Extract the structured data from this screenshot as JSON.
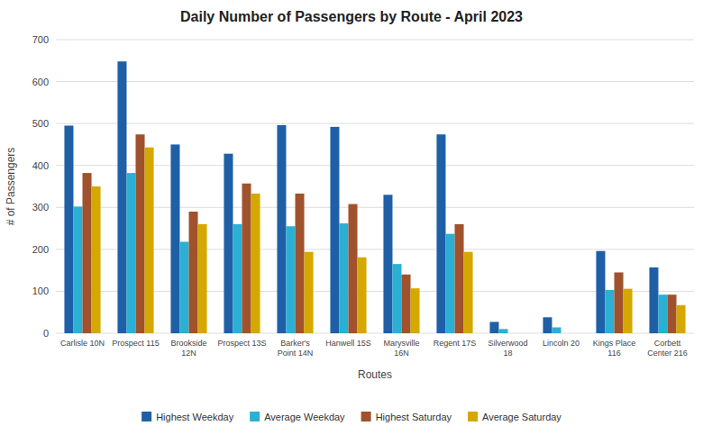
{
  "chart_data": {
    "type": "bar",
    "title": "Daily Number of Passengers by Route - April 2023",
    "xlabel": "Routes",
    "ylabel": "# of Passengers",
    "categories": [
      "Carlisle 10N",
      "Prospect 115",
      "Brookside\n12N",
      "Prospect 13S",
      "Barker's\nPoint 14N",
      "Hanwell 15S",
      "Marysville\n16N",
      "Regent 17S",
      "Silverwood\n18",
      "Lincoln 20",
      "Kings Place\n116",
      "Corbett\nCenter 216"
    ],
    "series": [
      {
        "name": "Highest Weekday",
        "color": "#1f5fa6",
        "values": [
          495,
          648,
          450,
          428,
          496,
          492,
          330,
          474,
          27,
          38,
          196,
          157
        ]
      },
      {
        "name": "Average Weekday",
        "color": "#2bb0d4",
        "values": [
          302,
          382,
          218,
          260,
          255,
          262,
          165,
          237,
          10,
          14,
          103,
          92
        ]
      },
      {
        "name": "Highest Saturday",
        "color": "#a0522d",
        "values": [
          382,
          474,
          290,
          357,
          333,
          308,
          140,
          260,
          0,
          0,
          145,
          92
        ]
      },
      {
        "name": "Average Saturday",
        "color": "#d4a800",
        "values": [
          350,
          443,
          260,
          333,
          194,
          181,
          107,
          194,
          0,
          0,
          106,
          67
        ]
      }
    ],
    "ylim": [
      0,
      700
    ],
    "yticks": [
      0,
      100,
      200,
      300,
      400,
      500,
      600,
      700
    ],
    "grid": true,
    "legend": "bottom"
  }
}
